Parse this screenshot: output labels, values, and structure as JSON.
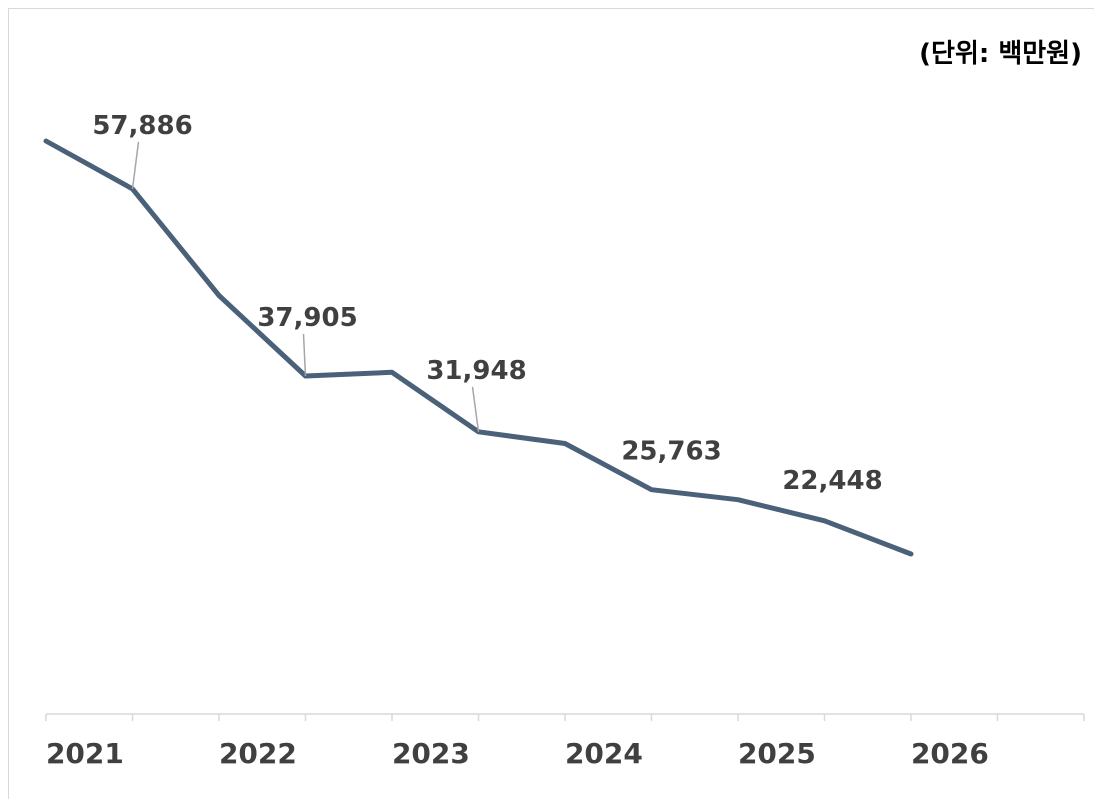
{
  "unit_label": "(단위: 백만원)",
  "chart_data": {
    "type": "line",
    "title": "",
    "xlabel": "",
    "ylabel": "",
    "unit": "(단위: 백만원)",
    "categories": [
      "2021",
      "2022",
      "2023",
      "2024",
      "2025",
      "2026"
    ],
    "grid": false,
    "legend": "none",
    "series": [
      {
        "color": "#4a6179",
        "points": [
          {
            "x": 2020.5,
            "y": 63000
          },
          {
            "x": 2021.0,
            "y": 57886,
            "label": "57,886"
          },
          {
            "x": 2021.5,
            "y": 46500
          },
          {
            "x": 2022.0,
            "y": 37905,
            "label": "37,905"
          },
          {
            "x": 2022.5,
            "y": 38300
          },
          {
            "x": 2023.0,
            "y": 31948,
            "label": "31,948"
          },
          {
            "x": 2023.5,
            "y": 30700
          },
          {
            "x": 2024.0,
            "y": 25763,
            "label": "25,763"
          },
          {
            "x": 2024.5,
            "y": 24700
          },
          {
            "x": 2025.0,
            "y": 22448,
            "label": "22,448"
          },
          {
            "x": 2025.5,
            "y": 18900
          }
        ]
      }
    ]
  }
}
